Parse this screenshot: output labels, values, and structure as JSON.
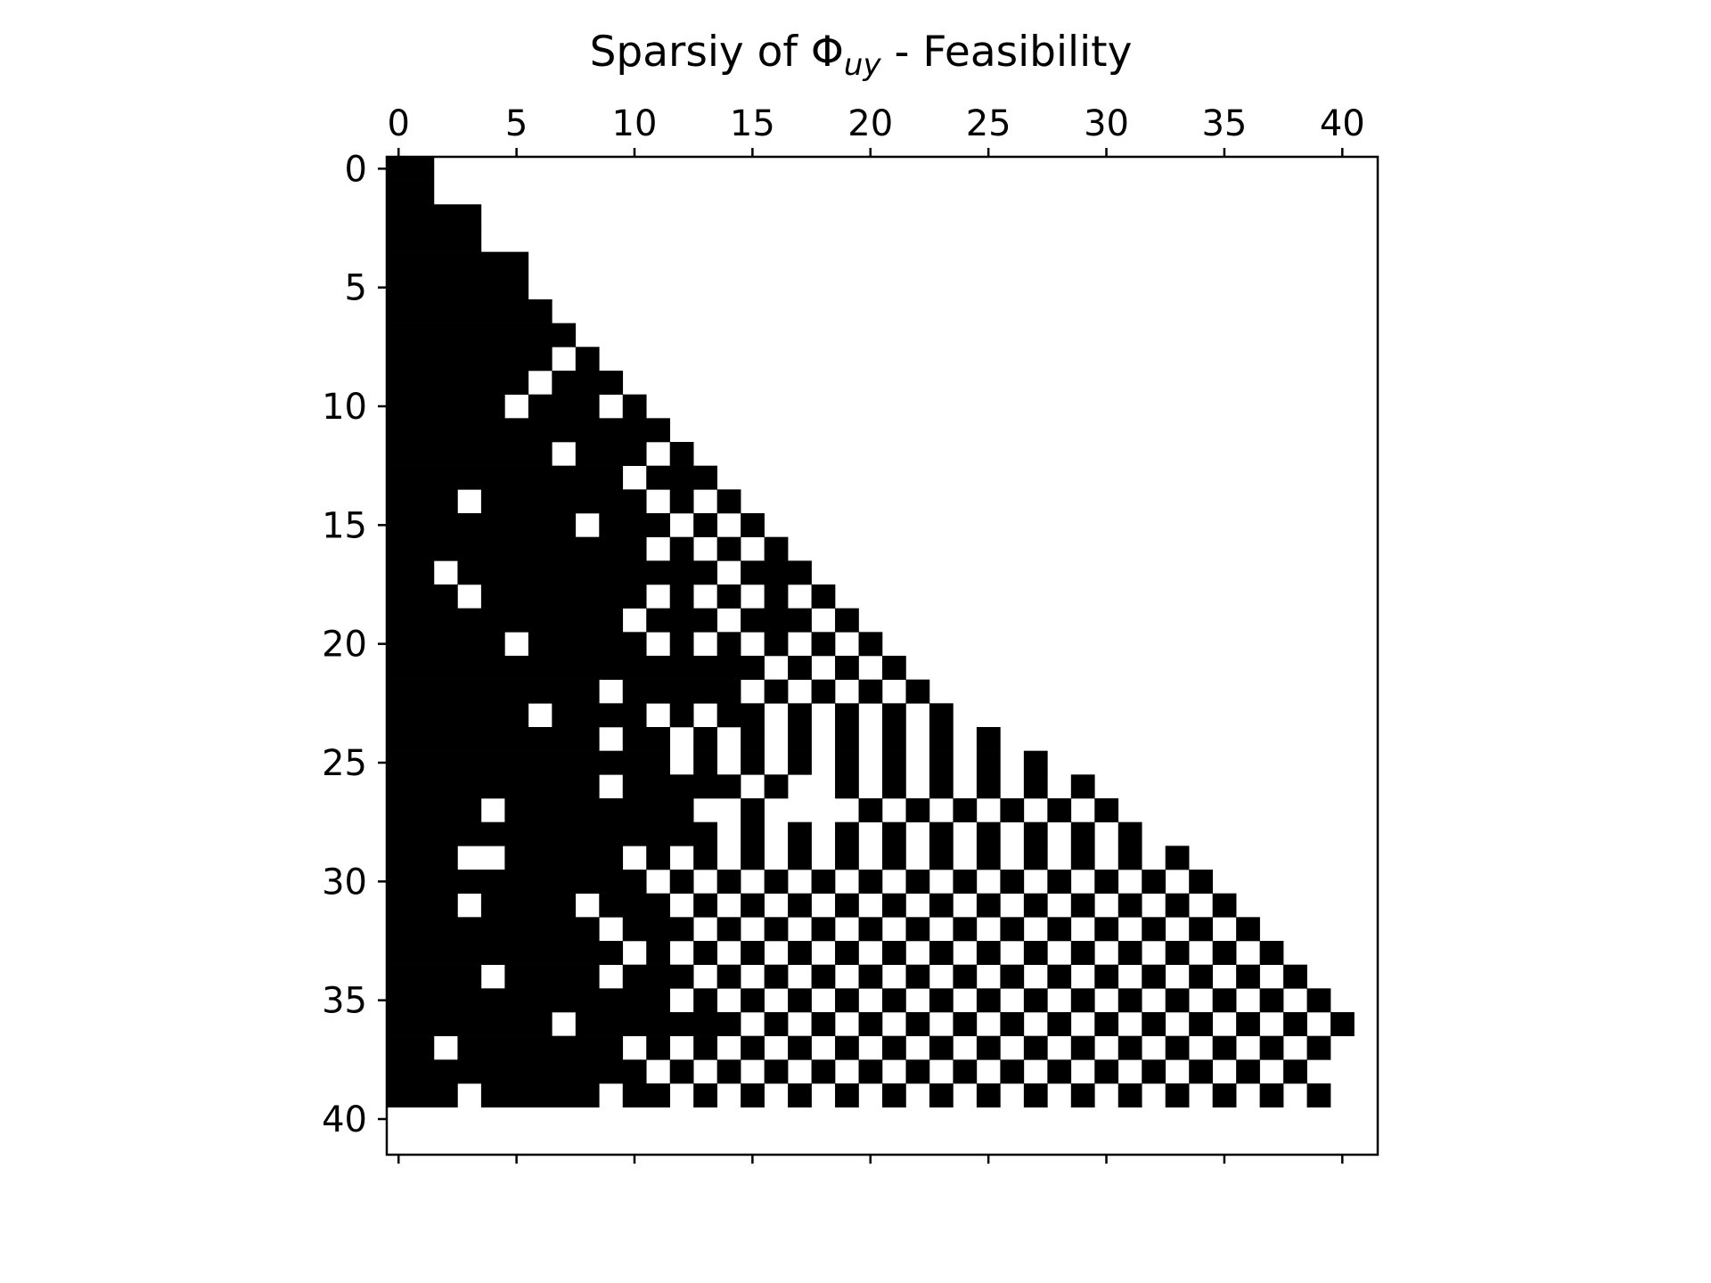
{
  "chart_data": {
    "type": "heatmap",
    "title": {
      "prefix": "Sparsiy of ",
      "symbol": "Φ",
      "subscript": "uy",
      "suffix": " - Feasibility"
    },
    "xlabel": "",
    "ylabel": "",
    "xlim": [
      -0.5,
      41.5
    ],
    "ylim": [
      41.5,
      -0.5
    ],
    "x_ticks": [
      0,
      5,
      10,
      15,
      20,
      25,
      30,
      35,
      40
    ],
    "y_ticks": [
      0,
      5,
      10,
      15,
      20,
      25,
      30,
      35,
      40
    ],
    "x_tick_labels": [
      "0",
      "5",
      "10",
      "15",
      "20",
      "25",
      "30",
      "35",
      "40"
    ],
    "y_tick_labels": [
      "0",
      "5",
      "10",
      "15",
      "20",
      "25",
      "30",
      "35",
      "40"
    ],
    "rows": 42,
    "cols": 42,
    "filled_color": "#000000",
    "empty_color": "#ffffff",
    "grid": false,
    "legend": "none",
    "row_ranges": [
      [
        [
          0,
          1
        ]
      ],
      [
        [
          0,
          1
        ]
      ],
      [
        [
          0,
          3
        ]
      ],
      [
        [
          0,
          3
        ]
      ],
      [
        [
          0,
          5
        ]
      ],
      [
        [
          0,
          5
        ]
      ],
      [
        [
          0,
          6
        ]
      ],
      [
        [
          0,
          7
        ]
      ],
      [
        [
          0,
          6
        ],
        [
          8,
          8
        ]
      ],
      [
        [
          0,
          5
        ],
        [
          7,
          9
        ]
      ],
      [
        [
          0,
          4
        ],
        [
          6,
          8
        ],
        [
          10,
          10
        ]
      ],
      [
        [
          0,
          11
        ]
      ],
      [
        [
          0,
          6
        ],
        [
          8,
          10
        ],
        [
          12,
          12
        ]
      ],
      [
        [
          0,
          9
        ],
        [
          11,
          13
        ]
      ],
      [
        [
          0,
          2
        ],
        [
          4,
          10
        ],
        [
          12,
          12
        ],
        [
          14,
          14
        ]
      ],
      [
        [
          0,
          7
        ],
        [
          9,
          11
        ],
        [
          13,
          13
        ],
        [
          15,
          15
        ]
      ],
      [
        [
          0,
          10
        ],
        [
          12,
          12
        ],
        [
          14,
          14
        ],
        [
          16,
          16
        ]
      ],
      [
        [
          0,
          1
        ],
        [
          3,
          13
        ],
        [
          15,
          17
        ]
      ],
      [
        [
          0,
          2
        ],
        [
          4,
          10
        ],
        [
          12,
          12
        ],
        [
          14,
          14
        ],
        [
          16,
          16
        ],
        [
          18,
          18
        ]
      ],
      [
        [
          0,
          9
        ],
        [
          11,
          13
        ],
        [
          15,
          17
        ],
        [
          19,
          19
        ]
      ],
      [
        [
          0,
          4
        ],
        [
          6,
          10
        ],
        [
          12,
          12
        ],
        [
          14,
          14
        ],
        [
          16,
          16
        ],
        [
          18,
          18
        ],
        [
          20,
          20
        ]
      ],
      [
        [
          0,
          15
        ],
        [
          17,
          17
        ],
        [
          19,
          19
        ],
        [
          21,
          21
        ]
      ],
      [
        [
          0,
          8
        ],
        [
          10,
          14
        ],
        [
          16,
          16
        ],
        [
          18,
          18
        ],
        [
          20,
          20
        ],
        [
          22,
          22
        ]
      ],
      [
        [
          0,
          5
        ],
        [
          7,
          10
        ],
        [
          12,
          12
        ],
        [
          14,
          15
        ],
        [
          17,
          17
        ],
        [
          19,
          19
        ],
        [
          21,
          21
        ],
        [
          23,
          23
        ]
      ],
      [
        [
          0,
          8
        ],
        [
          10,
          11
        ],
        [
          13,
          13
        ],
        [
          15,
          15
        ],
        [
          17,
          17
        ],
        [
          19,
          19
        ],
        [
          21,
          21
        ],
        [
          23,
          23
        ],
        [
          25,
          25
        ]
      ],
      [
        [
          0,
          11
        ],
        [
          13,
          13
        ],
        [
          15,
          15
        ],
        [
          17,
          17
        ],
        [
          19,
          19
        ],
        [
          21,
          21
        ],
        [
          23,
          23
        ],
        [
          25,
          25
        ],
        [
          27,
          27
        ]
      ],
      [
        [
          0,
          8
        ],
        [
          10,
          14
        ],
        [
          16,
          16
        ],
        [
          19,
          19
        ],
        [
          21,
          21
        ],
        [
          23,
          23
        ],
        [
          25,
          25
        ],
        [
          27,
          27
        ],
        [
          29,
          29
        ]
      ],
      [
        [
          0,
          3
        ],
        [
          5,
          12
        ],
        [
          15,
          15
        ],
        [
          20,
          20
        ],
        [
          22,
          22
        ],
        [
          24,
          24
        ],
        [
          26,
          26
        ],
        [
          28,
          28
        ],
        [
          30,
          30
        ]
      ],
      [
        [
          0,
          13
        ],
        [
          15,
          15
        ],
        [
          17,
          17
        ],
        [
          19,
          19
        ],
        [
          21,
          21
        ],
        [
          23,
          23
        ],
        [
          25,
          25
        ],
        [
          27,
          27
        ],
        [
          29,
          29
        ],
        [
          31,
          31
        ]
      ],
      [
        [
          0,
          2
        ],
        [
          5,
          9
        ],
        [
          11,
          11
        ],
        [
          13,
          13
        ],
        [
          15,
          15
        ],
        [
          17,
          17
        ],
        [
          19,
          19
        ],
        [
          21,
          21
        ],
        [
          23,
          23
        ],
        [
          25,
          25
        ],
        [
          27,
          27
        ],
        [
          29,
          29
        ],
        [
          31,
          31
        ],
        [
          33,
          33
        ]
      ],
      [
        [
          0,
          10
        ],
        [
          12,
          12
        ],
        [
          14,
          14
        ],
        [
          16,
          16
        ],
        [
          18,
          18
        ],
        [
          20,
          20
        ],
        [
          22,
          22
        ],
        [
          24,
          24
        ],
        [
          26,
          26
        ],
        [
          28,
          28
        ],
        [
          30,
          30
        ],
        [
          32,
          32
        ],
        [
          34,
          34
        ]
      ],
      [
        [
          0,
          2
        ],
        [
          4,
          7
        ],
        [
          9,
          11
        ],
        [
          13,
          13
        ],
        [
          15,
          15
        ],
        [
          17,
          17
        ],
        [
          19,
          19
        ],
        [
          21,
          21
        ],
        [
          23,
          23
        ],
        [
          25,
          25
        ],
        [
          27,
          27
        ],
        [
          29,
          29
        ],
        [
          31,
          31
        ],
        [
          33,
          33
        ],
        [
          35,
          35
        ]
      ],
      [
        [
          0,
          8
        ],
        [
          10,
          12
        ],
        [
          14,
          14
        ],
        [
          16,
          16
        ],
        [
          18,
          18
        ],
        [
          20,
          20
        ],
        [
          22,
          22
        ],
        [
          24,
          24
        ],
        [
          26,
          26
        ],
        [
          28,
          28
        ],
        [
          30,
          30
        ],
        [
          32,
          32
        ],
        [
          34,
          34
        ],
        [
          36,
          36
        ]
      ],
      [
        [
          0,
          9
        ],
        [
          11,
          11
        ],
        [
          13,
          13
        ],
        [
          15,
          15
        ],
        [
          17,
          17
        ],
        [
          19,
          19
        ],
        [
          21,
          21
        ],
        [
          23,
          23
        ],
        [
          25,
          25
        ],
        [
          27,
          27
        ],
        [
          29,
          29
        ],
        [
          31,
          31
        ],
        [
          33,
          33
        ],
        [
          35,
          35
        ],
        [
          37,
          37
        ]
      ],
      [
        [
          0,
          3
        ],
        [
          5,
          8
        ],
        [
          10,
          12
        ],
        [
          14,
          14
        ],
        [
          16,
          16
        ],
        [
          18,
          18
        ],
        [
          20,
          20
        ],
        [
          22,
          22
        ],
        [
          24,
          24
        ],
        [
          26,
          26
        ],
        [
          28,
          28
        ],
        [
          30,
          30
        ],
        [
          32,
          32
        ],
        [
          34,
          34
        ],
        [
          36,
          36
        ],
        [
          38,
          38
        ]
      ],
      [
        [
          0,
          11
        ],
        [
          13,
          13
        ],
        [
          15,
          15
        ],
        [
          17,
          17
        ],
        [
          19,
          19
        ],
        [
          21,
          21
        ],
        [
          23,
          23
        ],
        [
          25,
          25
        ],
        [
          27,
          27
        ],
        [
          29,
          29
        ],
        [
          31,
          31
        ],
        [
          33,
          33
        ],
        [
          35,
          35
        ],
        [
          37,
          37
        ],
        [
          39,
          39
        ]
      ],
      [
        [
          0,
          6
        ],
        [
          8,
          14
        ],
        [
          16,
          16
        ],
        [
          18,
          18
        ],
        [
          20,
          20
        ],
        [
          22,
          22
        ],
        [
          24,
          24
        ],
        [
          26,
          26
        ],
        [
          28,
          28
        ],
        [
          30,
          30
        ],
        [
          32,
          32
        ],
        [
          34,
          34
        ],
        [
          36,
          36
        ],
        [
          38,
          38
        ],
        [
          40,
          40
        ]
      ],
      [
        [
          0,
          1
        ],
        [
          3,
          9
        ],
        [
          11,
          11
        ],
        [
          13,
          13
        ],
        [
          15,
          15
        ],
        [
          17,
          17
        ],
        [
          19,
          19
        ],
        [
          21,
          21
        ],
        [
          23,
          23
        ],
        [
          25,
          25
        ],
        [
          27,
          27
        ],
        [
          29,
          29
        ],
        [
          31,
          31
        ],
        [
          33,
          33
        ],
        [
          35,
          35
        ],
        [
          37,
          37
        ],
        [
          39,
          39
        ]
      ],
      [
        [
          0,
          10
        ],
        [
          12,
          12
        ],
        [
          14,
          14
        ],
        [
          16,
          16
        ],
        [
          18,
          18
        ],
        [
          20,
          20
        ],
        [
          22,
          22
        ],
        [
          24,
          24
        ],
        [
          26,
          26
        ],
        [
          28,
          28
        ],
        [
          30,
          30
        ],
        [
          32,
          32
        ],
        [
          34,
          34
        ],
        [
          36,
          36
        ],
        [
          38,
          38
        ]
      ],
      [
        [
          0,
          2
        ],
        [
          4,
          8
        ],
        [
          10,
          11
        ],
        [
          13,
          13
        ],
        [
          15,
          15
        ],
        [
          17,
          17
        ],
        [
          19,
          19
        ],
        [
          21,
          21
        ],
        [
          23,
          23
        ],
        [
          25,
          25
        ],
        [
          27,
          27
        ],
        [
          29,
          29
        ],
        [
          31,
          31
        ],
        [
          33,
          33
        ],
        [
          35,
          35
        ],
        [
          37,
          37
        ],
        [
          39,
          39
        ]
      ],
      [],
      []
    ]
  }
}
